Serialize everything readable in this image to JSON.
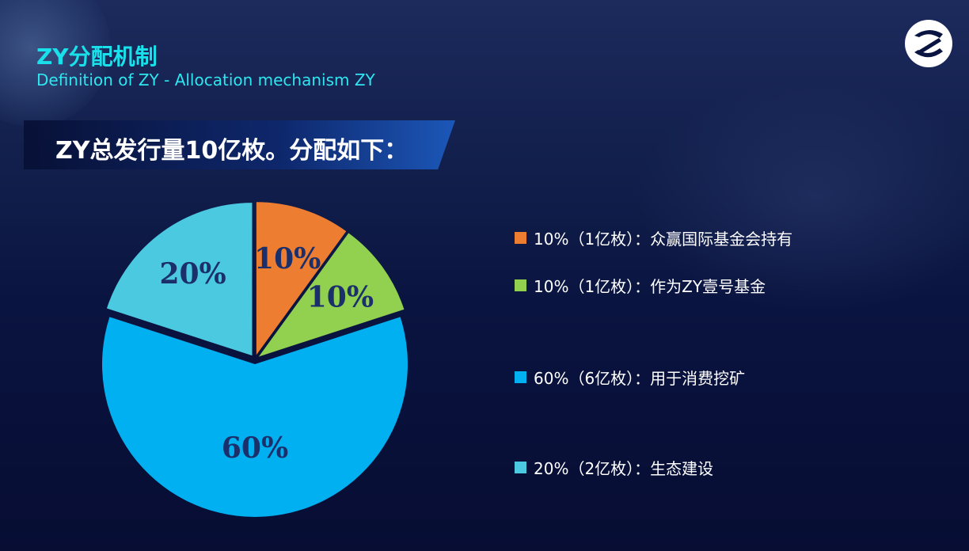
{
  "header": {
    "title_cn": "ZY分配机制",
    "title_en": "Definition of ZY - Allocation mechanism ZY"
  },
  "banner": {
    "text": "ZY总发行量10亿枚。分配如下："
  },
  "colors": {
    "accent_cyan": "#19e0ea",
    "orange": "#ed7d31",
    "green": "#92d050",
    "blue": "#00b0f0",
    "cyan": "#4bc9e0",
    "label_text": "#1b2f6b"
  },
  "chart_data": {
    "type": "pie",
    "title": "",
    "slices": [
      {
        "label": "10%",
        "value": 10,
        "color": "#ed7d31",
        "legend": "10%（1亿枚）：众赢国际基金会持有"
      },
      {
        "label": "10%",
        "value": 10,
        "color": "#92d050",
        "legend": "10%（1亿枚）：作为ZY壹号基金"
      },
      {
        "label": "60%",
        "value": 60,
        "color": "#00b0f0",
        "legend": "60%（6亿枚）：用于消费挖矿"
      },
      {
        "label": "20%",
        "value": 20,
        "color": "#4bc9e0",
        "legend": "20%（2亿枚）：生态建设"
      }
    ],
    "legend_placement": "right"
  }
}
